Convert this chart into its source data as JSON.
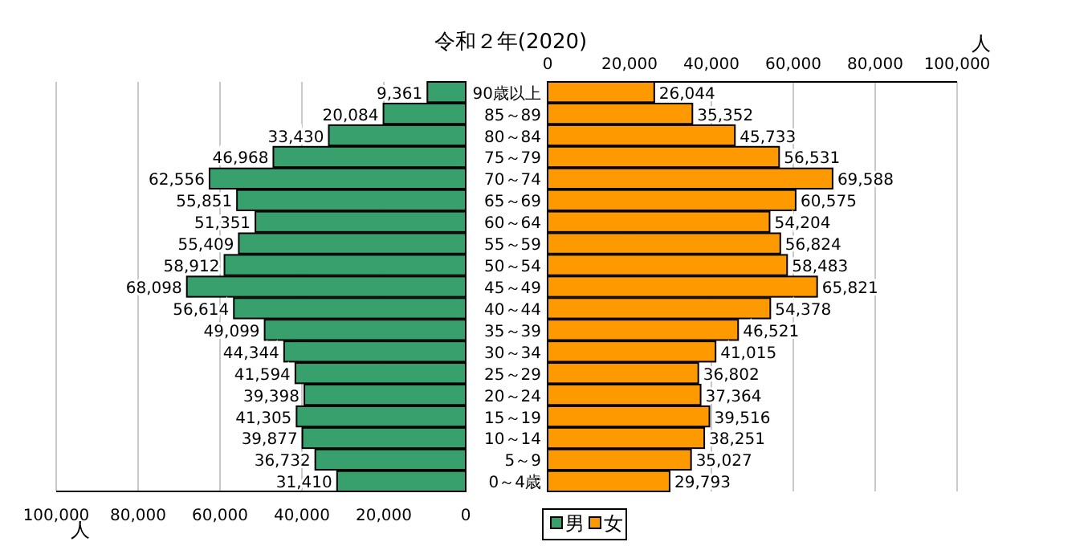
{
  "chart_data": [
    {
      "type": "bar",
      "orientation": "horizontal",
      "categories": [
        null,
        null,
        null,
        null,
        null,
        null,
        null,
        null,
        null,
        null,
        null,
        null,
        null,
        null,
        null,
        null,
        null,
        null,
        null
      ],
      "series": [
        {
          "name": "男",
          "color": "#38a06c",
          "values": [
            9361,
            20084,
            33430,
            46968,
            62556,
            55851,
            51351,
            55409,
            58912,
            68098,
            56614,
            49099,
            44344,
            41594,
            39398,
            41305,
            39877,
            36732,
            31410
          ]
        }
      ],
      "xlim": [
        100000,
        0
      ],
      "xticks": [
        {
          "value": 100000,
          "label": "100,000"
        },
        {
          "value": 80000,
          "label": "80,000"
        },
        {
          "value": 60000,
          "label": "60,000"
        },
        {
          "value": 40000,
          "label": "40,000"
        },
        {
          "value": 20000,
          "label": "20,000"
        },
        0
      ],
      "value_labels": [
        "9,361",
        "20,084",
        "33,430",
        "46,968",
        "62,556",
        "55,851",
        "51,351",
        "55,409",
        "58,912",
        "68,098",
        "56,614",
        "49,099",
        "44,344",
        "41,594",
        "39,398",
        "41,305",
        "39,877",
        "36,732",
        "31,410"
      ],
      "xlabel": "人",
      "grid": "x",
      "tick_labels": "x",
      "legend": "bottom"
    },
    {
      "type": "bar",
      "orientation": "horizontal",
      "title": "令和２年(2020)",
      "categories": [
        "90歳以上",
        "85～89",
        "80～84",
        "75～79",
        "70～74",
        "65～69",
        "60～64",
        "55～59",
        "50～54",
        "45～49",
        "40～44",
        "35～39",
        "30～34",
        "25～29",
        "20～24",
        "15～19",
        "10～14",
        "5～9",
        "0～4歳"
      ],
      "series": [
        {
          "name": "女",
          "color": "#ff9900",
          "values": [
            26044,
            35352,
            45733,
            56531,
            69588,
            60575,
            54204,
            56824,
            58483,
            65821,
            54378,
            46521,
            41015,
            36802,
            37364,
            39516,
            38251,
            35027,
            29793
          ]
        }
      ],
      "xlim": [
        0,
        100000
      ],
      "xticks": [
        0,
        {
          "value": 20000,
          "label": "20,000"
        },
        {
          "value": 40000,
          "label": "40,000"
        },
        {
          "value": 60000,
          "label": "60,000"
        },
        {
          "value": 80000,
          "label": "80,000"
        },
        {
          "value": 100000,
          "label": "100,000"
        }
      ],
      "value_labels": [
        "26,044",
        "35,352",
        "45,733",
        "56,531",
        "69,588",
        "60,575",
        "54,204",
        "56,824",
        "58,483",
        "65,821",
        "54,378",
        "46,521",
        "41,015",
        "36,802",
        "37,364",
        "39,516",
        "38,251",
        "35,027",
        "29,793"
      ],
      "xlabel": "人",
      "grid": "x",
      "legend": "bottom"
    }
  ]
}
